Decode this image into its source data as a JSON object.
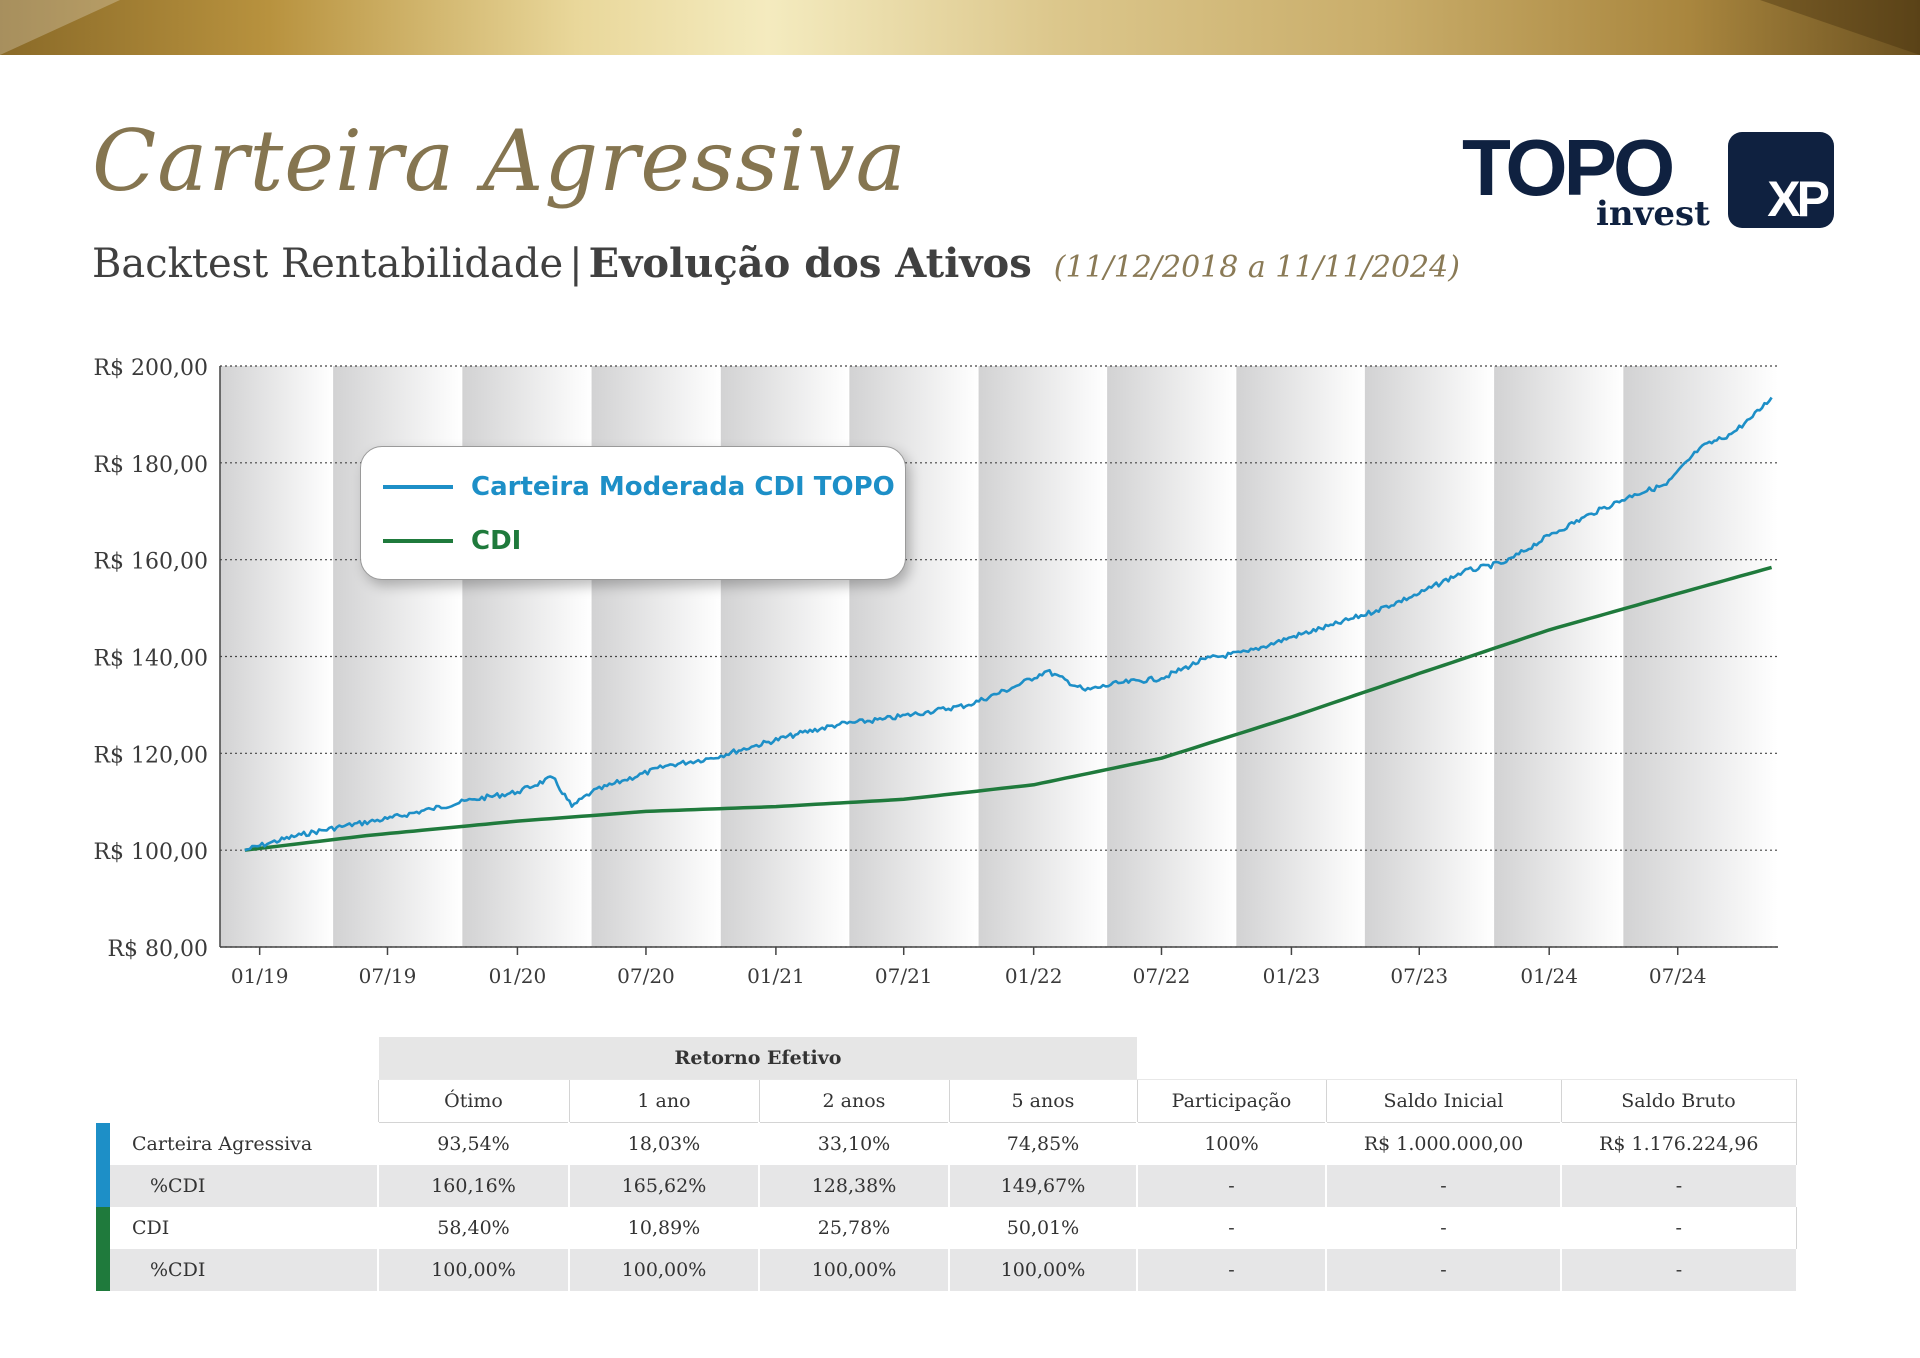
{
  "header": {
    "title": "Carteira Agressiva",
    "subtitle_regular": "Backtest Rentabilidade",
    "subtitle_separator": "|",
    "subtitle_bold": "Evolução dos Ativos",
    "period": "(11/12/2018 a 11/11/2024)"
  },
  "logos": {
    "topo_word": "TOPO",
    "topo_sub": "invest",
    "xp_word": "XP"
  },
  "colors": {
    "portfolio_line": "#1d8fc7",
    "cdi_line": "#1f7a3c",
    "title_gold": "#857550"
  },
  "legend": {
    "items": [
      {
        "label": "Carteira Moderada CDI TOPO",
        "color": "#1d8fc7"
      },
      {
        "label": "CDI",
        "color": "#1f7a3c"
      }
    ]
  },
  "chart_data": {
    "type": "line",
    "xlabel": "",
    "ylabel": "",
    "x_start": "11/12/2018",
    "x_end": "11/11/2024",
    "x_ticks": [
      "01/19",
      "07/19",
      "01/20",
      "07/20",
      "01/21",
      "07/21",
      "01/22",
      "07/22",
      "01/23",
      "07/23",
      "01/24",
      "07/24"
    ],
    "y_tick_labels": [
      "R$ 80,00",
      "R$ 100,00",
      "R$ 120,00",
      "R$ 140,00",
      "R$ 160,00",
      "R$ 180,00",
      "R$ 200,00"
    ],
    "y_ticks": [
      80,
      100,
      120,
      140,
      160,
      180,
      200
    ],
    "ylim": [
      80,
      200
    ],
    "grid": "horizontal dotted",
    "legend_position": "top-left",
    "series": [
      {
        "name": "Carteira Moderada CDI TOPO",
        "color": "#1d8fc7",
        "points": [
          [
            "2018-12-11",
            100.0
          ],
          [
            "2019-01-15",
            101.5
          ],
          [
            "2019-03-01",
            103.2
          ],
          [
            "2019-05-01",
            105.0
          ],
          [
            "2019-07-01",
            106.5
          ],
          [
            "2019-09-01",
            108.5
          ],
          [
            "2019-11-01",
            110.5
          ],
          [
            "2020-01-01",
            112.0
          ],
          [
            "2020-02-20",
            115.0
          ],
          [
            "2020-03-18",
            109.0
          ],
          [
            "2020-04-15",
            112.0
          ],
          [
            "2020-06-01",
            114.5
          ],
          [
            "2020-08-01",
            117.5
          ],
          [
            "2020-10-01",
            119.0
          ],
          [
            "2020-12-01",
            121.5
          ],
          [
            "2021-02-01",
            124.0
          ],
          [
            "2021-04-01",
            126.0
          ],
          [
            "2021-06-01",
            127.0
          ],
          [
            "2021-08-01",
            128.5
          ],
          [
            "2021-10-01",
            130.0
          ],
          [
            "2021-12-01",
            133.5
          ],
          [
            "2022-01-20",
            137.0
          ],
          [
            "2022-03-15",
            133.0
          ],
          [
            "2022-05-01",
            134.5
          ],
          [
            "2022-07-01",
            135.5
          ],
          [
            "2022-09-01",
            139.5
          ],
          [
            "2022-11-01",
            141.0
          ],
          [
            "2023-01-01",
            144.0
          ],
          [
            "2023-03-01",
            146.5
          ],
          [
            "2023-05-01",
            149.5
          ],
          [
            "2023-07-01",
            153.0
          ],
          [
            "2023-09-01",
            157.5
          ],
          [
            "2023-11-01",
            159.5
          ],
          [
            "2024-01-01",
            165.0
          ],
          [
            "2024-03-01",
            169.5
          ],
          [
            "2024-05-01",
            173.5
          ],
          [
            "2024-06-15",
            175.5
          ],
          [
            "2024-08-01",
            183.0
          ],
          [
            "2024-09-15",
            186.0
          ],
          [
            "2024-10-15",
            189.5
          ],
          [
            "2024-11-11",
            193.5
          ]
        ]
      },
      {
        "name": "CDI",
        "color": "#1f7a3c",
        "points": [
          [
            "2018-12-11",
            100.0
          ],
          [
            "2019-06-01",
            103.0
          ],
          [
            "2020-01-01",
            106.0
          ],
          [
            "2020-07-01",
            108.0
          ],
          [
            "2021-01-01",
            109.0
          ],
          [
            "2021-07-01",
            110.5
          ],
          [
            "2022-01-01",
            113.5
          ],
          [
            "2022-07-01",
            119.0
          ],
          [
            "2023-01-01",
            127.5
          ],
          [
            "2023-07-01",
            136.5
          ],
          [
            "2024-01-01",
            145.5
          ],
          [
            "2024-07-01",
            153.0
          ],
          [
            "2024-11-11",
            158.4
          ]
        ]
      }
    ]
  },
  "table": {
    "group_header": "Retorno Efetivo",
    "columns": [
      "Ótimo",
      "1 ano",
      "2 anos",
      "5 anos",
      "Participação",
      "Saldo Inicial",
      "Saldo Bruto"
    ],
    "rows": [
      {
        "label": "Carteira Agressiva",
        "values": [
          "93,54%",
          "18,03%",
          "33,10%",
          "74,85%",
          "100%",
          "R$ 1.000.000,00",
          "R$ 1.176.224,96"
        ]
      },
      {
        "label": "%CDI",
        "values": [
          "160,16%",
          "165,62%",
          "128,38%",
          "149,67%",
          "-",
          "-",
          "-"
        ]
      },
      {
        "label": "CDI",
        "values": [
          "58,40%",
          "10,89%",
          "25,78%",
          "50,01%",
          "-",
          "-",
          "-"
        ]
      },
      {
        "label": "%CDI",
        "values": [
          "100,00%",
          "100,00%",
          "100,00%",
          "100,00%",
          "-",
          "-",
          "-"
        ]
      }
    ]
  }
}
